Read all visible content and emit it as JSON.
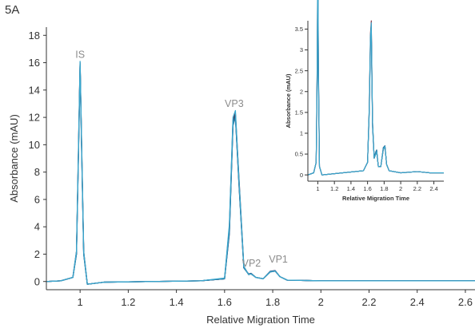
{
  "figure_label": "5A",
  "chart_data": [
    {
      "type": "line",
      "title": "",
      "xlabel": "Relative Migration Time",
      "ylabel": "Absorbance (mAU)",
      "xlim": [
        0.86,
        2.64
      ],
      "ylim": [
        -0.6,
        18.6
      ],
      "xticks": [
        1,
        1.2,
        1.4,
        1.6,
        1.8,
        2,
        2.2,
        2.4,
        2.6
      ],
      "yticks": [
        0,
        2,
        4,
        6,
        8,
        10,
        12,
        14,
        16,
        18
      ],
      "grid": false,
      "series_colors": [
        "#2a2f6b",
        "#7a2b3a",
        "#1f4f7a",
        "#2e7fa8",
        "#3aa8cf"
      ],
      "peaks": [
        {
          "label": "IS",
          "x": 1.0,
          "y": 16.0
        },
        {
          "label": "VP3",
          "x": 1.64,
          "y": 12.4
        },
        {
          "label": "VP2",
          "x": 1.705,
          "y": 0.5
        },
        {
          "label": "VP1",
          "x": 1.81,
          "y": 0.8
        }
      ],
      "series": [
        {
          "x": [
            0.86,
            0.92,
            0.97,
            0.985,
            0.993,
            1.0,
            1.007,
            1.015,
            1.03,
            1.1,
            1.3,
            1.5,
            1.6,
            1.62,
            1.635,
            1.645,
            1.66,
            1.68,
            1.7,
            1.71,
            1.73,
            1.76,
            1.79,
            1.81,
            1.83,
            1.86,
            2.0,
            2.2,
            2.4,
            2.64
          ],
          "y": [
            0,
            0.05,
            0.3,
            2.0,
            9.0,
            15.8,
            9.0,
            2.0,
            -0.2,
            -0.05,
            0,
            0.05,
            0.2,
            3.5,
            11.5,
            12.1,
            7.0,
            1.0,
            0.55,
            0.6,
            0.3,
            0.2,
            0.75,
            0.8,
            0.35,
            0.1,
            0.05,
            0.05,
            0.05,
            0.05
          ]
        },
        {
          "x": [
            0.86,
            0.92,
            0.97,
            0.985,
            0.993,
            1.0,
            1.007,
            1.015,
            1.03,
            1.1,
            1.3,
            1.5,
            1.6,
            1.62,
            1.635,
            1.645,
            1.66,
            1.68,
            1.7,
            1.71,
            1.73,
            1.76,
            1.79,
            1.81,
            1.83,
            1.86,
            2.0,
            2.2,
            2.4,
            2.64
          ],
          "y": [
            0,
            0.05,
            0.3,
            2.2,
            9.5,
            16.0,
            9.5,
            2.2,
            -0.2,
            -0.05,
            0,
            0.05,
            0.2,
            4.0,
            11.8,
            12.3,
            7.5,
            1.1,
            0.5,
            0.55,
            0.3,
            0.2,
            0.7,
            0.75,
            0.35,
            0.1,
            0.05,
            0.05,
            0.05,
            0.05
          ]
        },
        {
          "x": [
            0.86,
            0.92,
            0.97,
            0.985,
            0.993,
            1.0,
            1.007,
            1.015,
            1.03,
            1.1,
            1.3,
            1.5,
            1.6,
            1.62,
            1.635,
            1.645,
            1.66,
            1.68,
            1.7,
            1.71,
            1.73,
            1.76,
            1.79,
            1.81,
            1.83,
            1.86,
            2.0,
            2.2,
            2.4,
            2.64
          ],
          "y": [
            0,
            0.05,
            0.3,
            2.1,
            9.2,
            15.9,
            9.2,
            2.1,
            -0.2,
            -0.05,
            0,
            0.05,
            0.2,
            3.8,
            11.6,
            12.2,
            7.2,
            1.0,
            0.52,
            0.58,
            0.3,
            0.2,
            0.72,
            0.78,
            0.35,
            0.1,
            0.05,
            0.05,
            0.05,
            0.05
          ]
        },
        {
          "x": [
            0.86,
            0.92,
            0.97,
            0.985,
            0.993,
            1.0,
            1.007,
            1.015,
            1.03,
            1.1,
            1.3,
            1.5,
            1.6,
            1.62,
            1.635,
            1.645,
            1.66,
            1.68,
            1.7,
            1.71,
            1.73,
            1.76,
            1.79,
            1.81,
            1.83,
            1.86,
            2.0,
            2.2,
            2.4,
            2.64
          ],
          "y": [
            0,
            0.05,
            0.3,
            2.0,
            9.1,
            15.85,
            9.1,
            2.0,
            -0.2,
            -0.05,
            0,
            0.05,
            0.2,
            3.6,
            11.4,
            12.0,
            7.1,
            1.0,
            0.53,
            0.57,
            0.3,
            0.2,
            0.73,
            0.77,
            0.35,
            0.1,
            0.05,
            0.05,
            0.05,
            0.05
          ]
        },
        {
          "x": [
            0.86,
            0.92,
            0.97,
            0.985,
            0.993,
            1.0,
            1.007,
            1.015,
            1.03,
            1.1,
            1.3,
            1.5,
            1.6,
            1.62,
            1.635,
            1.645,
            1.66,
            1.68,
            1.7,
            1.71,
            1.73,
            1.76,
            1.79,
            1.81,
            1.83,
            1.86,
            2.0,
            2.2,
            2.4,
            2.64
          ],
          "y": [
            0,
            0.05,
            0.3,
            2.2,
            9.4,
            16.1,
            9.4,
            2.2,
            -0.2,
            -0.05,
            0,
            0.05,
            0.25,
            4.2,
            12.0,
            12.5,
            7.4,
            1.1,
            0.5,
            0.55,
            0.3,
            0.2,
            0.7,
            0.76,
            0.35,
            0.1,
            0.05,
            0.05,
            0.05,
            0.05
          ]
        }
      ]
    },
    {
      "type": "line",
      "title": "",
      "xlabel": "Relative Migration Time",
      "ylabel": "Absorbance (mAU)",
      "xlim": [
        0.88,
        2.52
      ],
      "ylim": [
        -0.15,
        3.7
      ],
      "xticks": [
        1,
        1.2,
        1.4,
        1.6,
        1.8,
        2,
        2.2,
        2.4
      ],
      "yticks": [
        0,
        0.5,
        1,
        1.5,
        2,
        2.5,
        3,
        3.5
      ],
      "grid": false,
      "series": [
        {
          "x": [
            0.88,
            0.95,
            0.98,
            0.993,
            1.0,
            1.007,
            1.02,
            1.05,
            1.3,
            1.55,
            1.6,
            1.62,
            1.635,
            1.645,
            1.66,
            1.68,
            1.7,
            1.71,
            1.73,
            1.76,
            1.79,
            1.81,
            1.83,
            1.86,
            2.0,
            2.2,
            2.35,
            2.52
          ],
          "y": [
            0,
            0.05,
            0.3,
            2.5,
            5.5,
            2.5,
            0.2,
            0.0,
            0.05,
            0.1,
            0.3,
            1.5,
            3.2,
            3.5,
            1.2,
            0.4,
            0.55,
            0.6,
            0.2,
            0.2,
            0.65,
            0.7,
            0.25,
            0.1,
            0.05,
            0.08,
            0.05,
            0.05
          ]
        },
        {
          "x": [
            0.88,
            0.95,
            0.98,
            0.993,
            1.0,
            1.007,
            1.02,
            1.05,
            1.3,
            1.55,
            1.6,
            1.62,
            1.635,
            1.645,
            1.66,
            1.68,
            1.7,
            1.71,
            1.73,
            1.76,
            1.79,
            1.81,
            1.83,
            1.86,
            2.0,
            2.2,
            2.35,
            2.52
          ],
          "y": [
            0,
            0.05,
            0.3,
            2.8,
            6.0,
            2.8,
            0.2,
            0.0,
            0.05,
            0.1,
            0.3,
            1.6,
            3.4,
            3.7,
            1.3,
            0.4,
            0.5,
            0.55,
            0.2,
            0.2,
            0.6,
            0.68,
            0.25,
            0.1,
            0.05,
            0.08,
            0.05,
            0.05
          ]
        },
        {
          "x": [
            0.88,
            0.95,
            0.98,
            0.993,
            1.0,
            1.007,
            1.02,
            1.05,
            1.3,
            1.55,
            1.6,
            1.62,
            1.635,
            1.645,
            1.66,
            1.68,
            1.7,
            1.71,
            1.73,
            1.76,
            1.79,
            1.81,
            1.83,
            1.86,
            2.0,
            2.2,
            2.35,
            2.52
          ],
          "y": [
            0,
            0.05,
            0.3,
            2.6,
            5.7,
            2.6,
            0.2,
            0.0,
            0.05,
            0.1,
            0.3,
            1.55,
            3.3,
            3.6,
            1.25,
            0.4,
            0.52,
            0.58,
            0.2,
            0.2,
            0.62,
            0.69,
            0.25,
            0.1,
            0.05,
            0.08,
            0.05,
            0.05
          ]
        },
        {
          "x": [
            0.88,
            0.95,
            0.98,
            0.993,
            1.0,
            1.007,
            1.02,
            1.05,
            1.3,
            1.55,
            1.6,
            1.62,
            1.635,
            1.645,
            1.66,
            1.68,
            1.7,
            1.71,
            1.73,
            1.76,
            1.79,
            1.81,
            1.83,
            1.86,
            2.0,
            2.2,
            2.35,
            2.52
          ],
          "y": [
            0,
            0.05,
            0.3,
            2.4,
            5.3,
            2.4,
            0.2,
            0.0,
            0.05,
            0.1,
            0.3,
            1.45,
            3.1,
            3.45,
            1.15,
            0.4,
            0.56,
            0.6,
            0.2,
            0.2,
            0.66,
            0.7,
            0.25,
            0.1,
            0.05,
            0.08,
            0.05,
            0.05
          ]
        },
        {
          "x": [
            0.88,
            0.95,
            0.98,
            0.993,
            1.0,
            1.007,
            1.02,
            1.05,
            1.3,
            1.55,
            1.6,
            1.62,
            1.635,
            1.645,
            1.66,
            1.68,
            1.7,
            1.71,
            1.73,
            1.76,
            1.79,
            1.81,
            1.83,
            1.86,
            2.0,
            2.2,
            2.35,
            2.52
          ],
          "y": [
            0,
            0.05,
            0.3,
            2.7,
            5.9,
            2.7,
            0.2,
            0.0,
            0.05,
            0.1,
            0.3,
            1.6,
            3.35,
            3.65,
            1.3,
            0.4,
            0.5,
            0.56,
            0.2,
            0.2,
            0.61,
            0.68,
            0.25,
            0.1,
            0.05,
            0.08,
            0.05,
            0.05
          ]
        }
      ]
    }
  ]
}
